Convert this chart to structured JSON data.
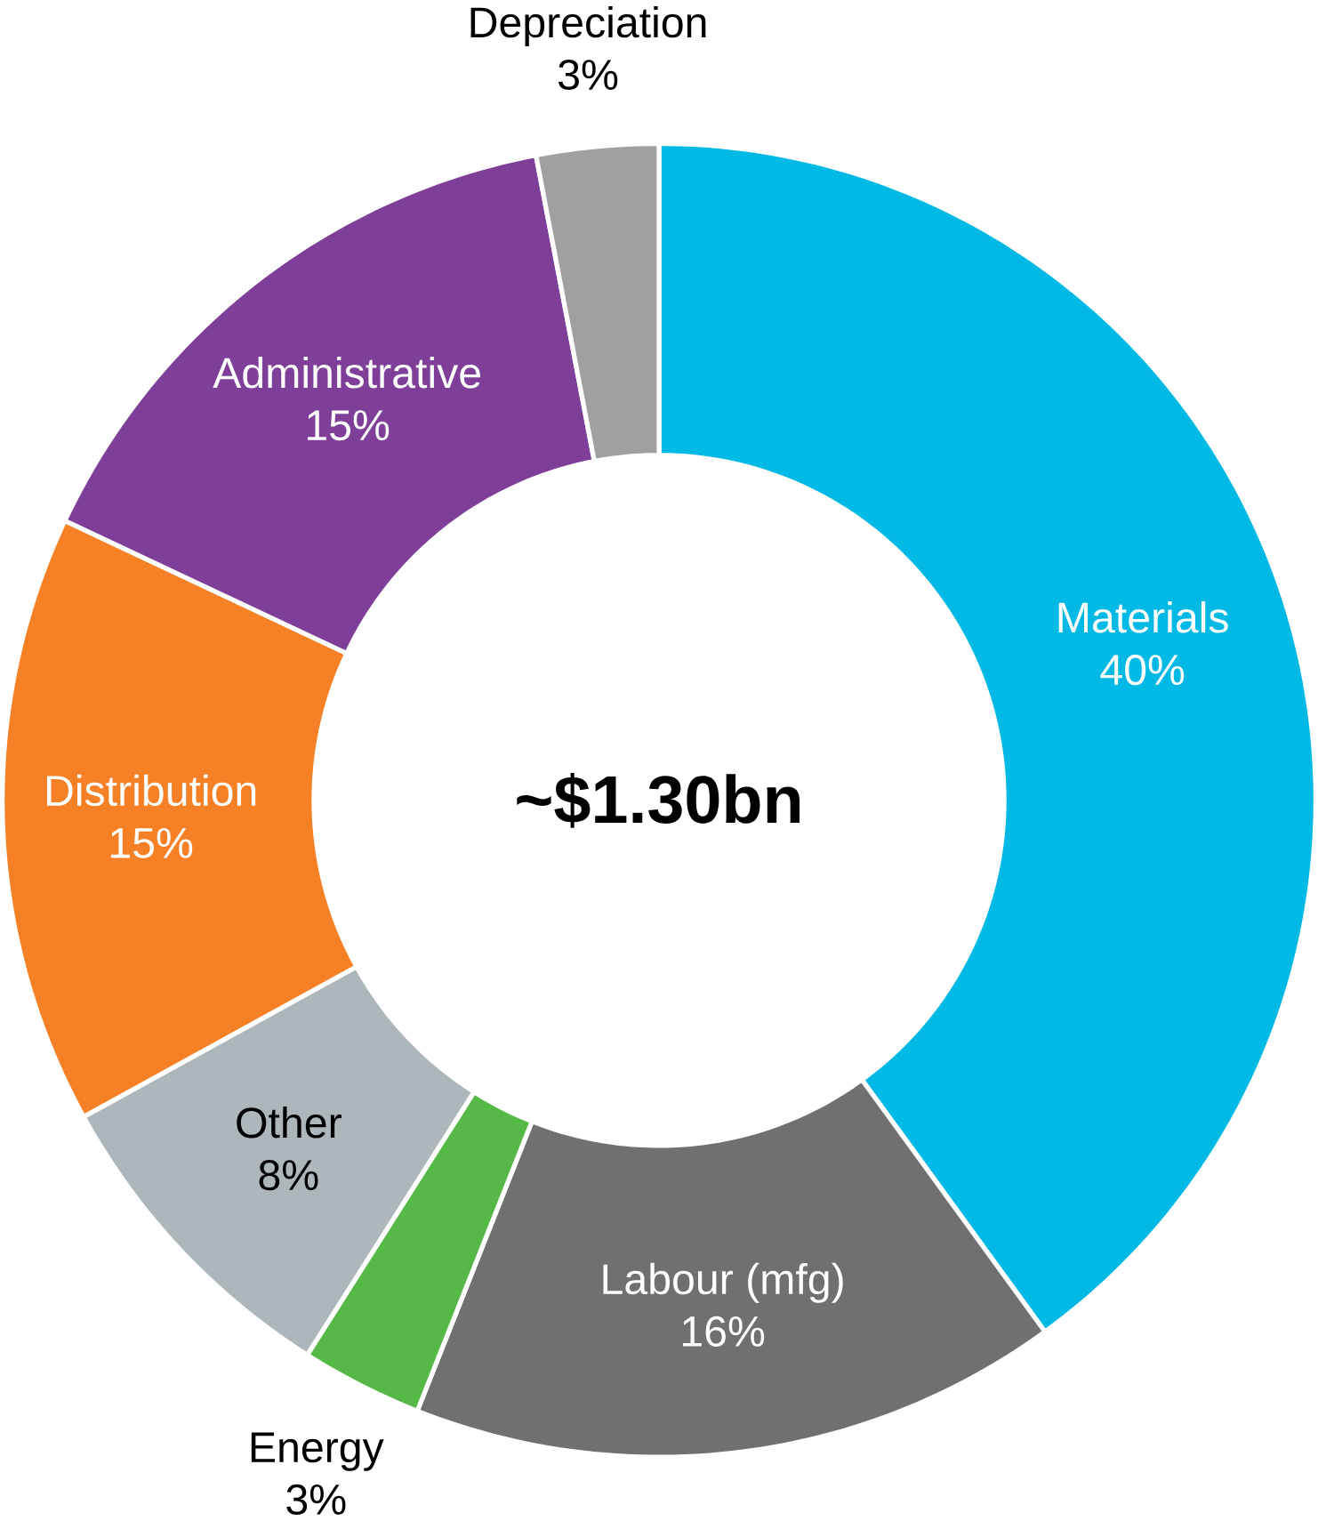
{
  "chart_data": {
    "type": "donut",
    "categories": [
      "Materials",
      "Labour (mfg)",
      "Energy",
      "Other",
      "Distribution",
      "Administrative",
      "Depreciation"
    ],
    "values": [
      40,
      16,
      3,
      8,
      15,
      15,
      3
    ],
    "value_labels": [
      "40%",
      "16%",
      "3%",
      "8%",
      "15%",
      "15%",
      "3%"
    ],
    "colors": [
      "#00b9e4",
      "#707070",
      "#56b947",
      "#adb6bb",
      "#f58025",
      "#7f3f98",
      "#a0a0a0"
    ],
    "annotations": [
      "~$1.30bn"
    ]
  }
}
